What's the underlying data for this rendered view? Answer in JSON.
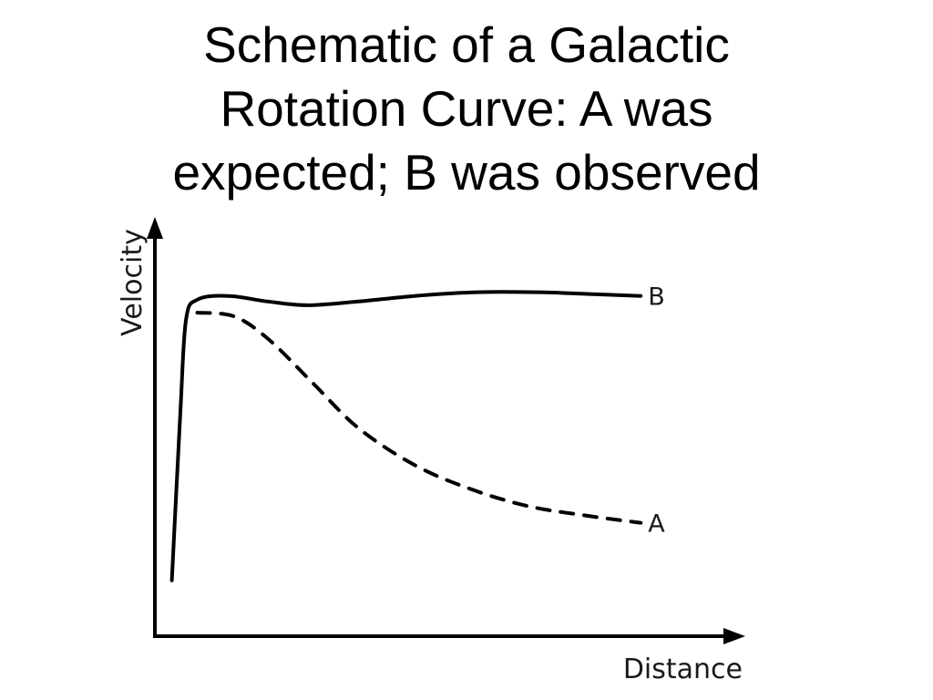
{
  "slide": {
    "title_lines": [
      "Schematic of a Galactic",
      "Rotation Curve:  A was",
      "expected; B was observed"
    ]
  },
  "chart_data": {
    "type": "line",
    "title": "",
    "xlabel": "Distance",
    "ylabel": "Velocity",
    "xlim": [
      0,
      10
    ],
    "ylim": [
      0,
      10
    ],
    "grid": false,
    "legend": "none",
    "series": [
      {
        "name": "B",
        "style": "solid",
        "color": "#000000",
        "points": [
          [
            0.3,
            1.5
          ],
          [
            0.45,
            6.0
          ],
          [
            0.55,
            8.5
          ],
          [
            0.75,
            9.05
          ],
          [
            1.3,
            9.15
          ],
          [
            2.0,
            9.0
          ],
          [
            2.7,
            8.9
          ],
          [
            3.6,
            9.0
          ],
          [
            4.6,
            9.15
          ],
          [
            5.7,
            9.25
          ],
          [
            6.8,
            9.25
          ],
          [
            7.7,
            9.2
          ],
          [
            8.6,
            9.15
          ]
        ]
      },
      {
        "name": "A",
        "style": "dashed",
        "color": "#000000",
        "points": [
          [
            0.75,
            8.7
          ],
          [
            1.4,
            8.6
          ],
          [
            2.0,
            8.0
          ],
          [
            2.8,
            6.8
          ],
          [
            3.6,
            5.6
          ],
          [
            4.6,
            4.6
          ],
          [
            5.6,
            3.95
          ],
          [
            6.6,
            3.5
          ],
          [
            7.6,
            3.25
          ],
          [
            8.6,
            3.05
          ]
        ]
      }
    ]
  }
}
